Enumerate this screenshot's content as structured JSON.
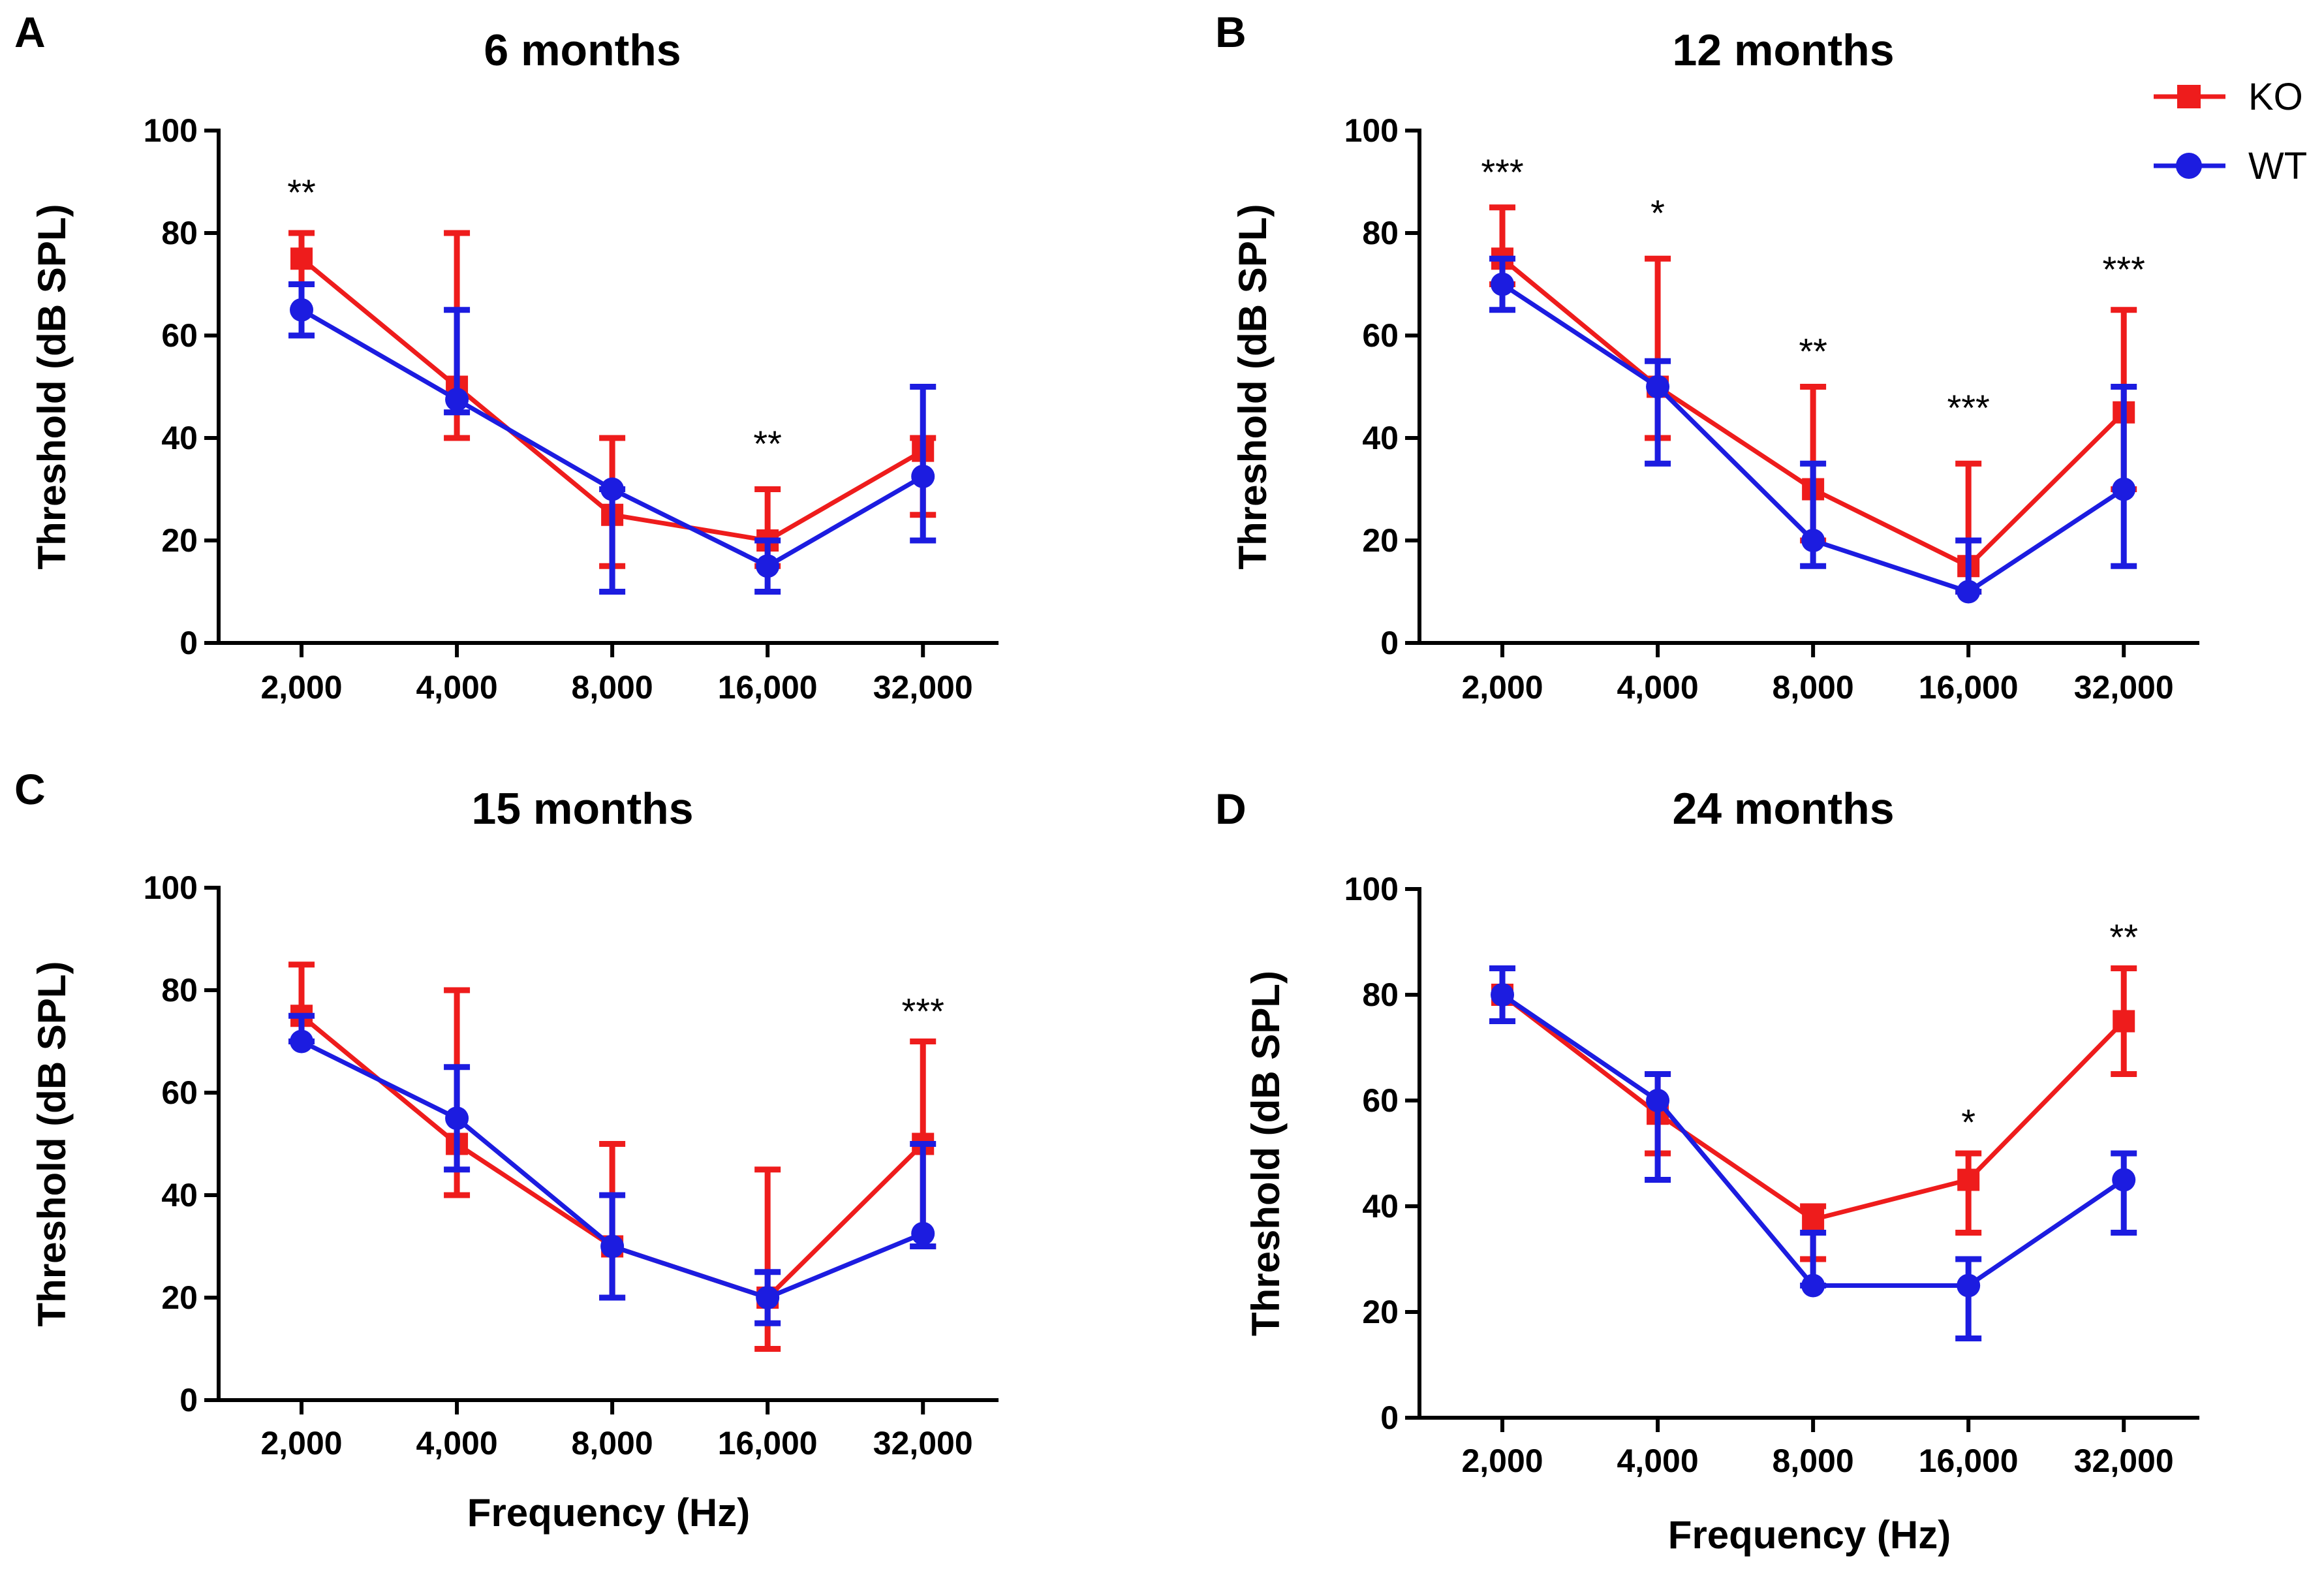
{
  "legend": {
    "entries": [
      {
        "name": "KO",
        "color": "#ee1c1c",
        "marker": "square"
      },
      {
        "name": "WT",
        "color": "#1c1ce0",
        "marker": "circle"
      }
    ]
  },
  "x_axis_label": "Frequency (Hz)",
  "chart_data": [
    {
      "panel": "A",
      "title": "6 months",
      "type": "line",
      "categories": [
        "2,000",
        "4,000",
        "8,000",
        "16,000",
        "32,000"
      ],
      "ylabel": "Threshold (dB SPL)",
      "xlabel": "",
      "ylim": [
        0,
        100
      ],
      "yticks": [
        "0",
        "20",
        "40",
        "60",
        "80",
        "100"
      ],
      "series": [
        {
          "name": "KO",
          "values": [
            75,
            50,
            25,
            20,
            37.5
          ],
          "err_low": [
            70,
            40,
            15,
            15,
            25
          ],
          "err_high": [
            80,
            80,
            40,
            30,
            40
          ]
        },
        {
          "name": "WT",
          "values": [
            65,
            47.5,
            30,
            15,
            32.5
          ],
          "err_low": [
            60,
            45,
            10,
            10,
            20
          ],
          "err_high": [
            70,
            65,
            30,
            20,
            50
          ]
        }
      ],
      "annotations": [
        {
          "index": 0,
          "text": "**",
          "y": 88
        },
        {
          "index": 3,
          "text": "**",
          "y": 39
        }
      ]
    },
    {
      "panel": "B",
      "title": "12 months",
      "type": "line",
      "categories": [
        "2,000",
        "4,000",
        "8,000",
        "16,000",
        "32,000"
      ],
      "ylabel": "Threshold (dB SPL)",
      "xlabel": "",
      "ylim": [
        0,
        100
      ],
      "yticks": [
        "0",
        "20",
        "40",
        "60",
        "80",
        "100"
      ],
      "series": [
        {
          "name": "KO",
          "values": [
            75,
            50,
            30,
            15,
            45
          ],
          "err_low": [
            70,
            40,
            20,
            10,
            30
          ],
          "err_high": [
            85,
            75,
            50,
            35,
            65
          ]
        },
        {
          "name": "WT",
          "values": [
            70,
            50,
            20,
            10,
            30
          ],
          "err_low": [
            65,
            35,
            15,
            10,
            15
          ],
          "err_high": [
            75,
            55,
            35,
            20,
            50
          ]
        }
      ],
      "annotations": [
        {
          "index": 0,
          "text": "***",
          "y": 92
        },
        {
          "index": 1,
          "text": "*",
          "y": 84
        },
        {
          "index": 2,
          "text": "**",
          "y": 57
        },
        {
          "index": 3,
          "text": "***",
          "y": 46
        },
        {
          "index": 4,
          "text": "***",
          "y": 73
        }
      ]
    },
    {
      "panel": "C",
      "title": "15 months",
      "type": "line",
      "categories": [
        "2,000",
        "4,000",
        "8,000",
        "16,000",
        "32,000"
      ],
      "ylabel": "Threshold (dB SPL)",
      "xlabel": "Frequency (Hz)",
      "ylim": [
        0,
        100
      ],
      "yticks": [
        "0",
        "20",
        "40",
        "60",
        "80",
        "100"
      ],
      "series": [
        {
          "name": "KO",
          "values": [
            75,
            50,
            30,
            20,
            50
          ],
          "err_low": [
            70,
            40,
            20,
            10,
            30
          ],
          "err_high": [
            85,
            80,
            50,
            45,
            70
          ]
        },
        {
          "name": "WT",
          "values": [
            70,
            55,
            30,
            20,
            32.5
          ],
          "err_low": [
            70,
            45,
            20,
            15,
            30
          ],
          "err_high": [
            75,
            65,
            40,
            25,
            50
          ]
        }
      ],
      "annotations": [
        {
          "index": 4,
          "text": "***",
          "y": 76
        }
      ]
    },
    {
      "panel": "D",
      "title": "24 months",
      "type": "line",
      "categories": [
        "2,000",
        "4,000",
        "8,000",
        "16,000",
        "32,000"
      ],
      "ylabel": "Threshold (dB SPL)",
      "xlabel": "Frequency (Hz)",
      "ylim": [
        0,
        100
      ],
      "yticks": [
        "0",
        "20",
        "40",
        "60",
        "80",
        "100"
      ],
      "series": [
        {
          "name": "KO",
          "values": [
            80,
            57.5,
            37.5,
            45,
            75
          ],
          "err_low": [
            75,
            50,
            30,
            35,
            65
          ],
          "err_high": [
            85,
            65,
            40,
            50,
            85
          ]
        },
        {
          "name": "WT",
          "values": [
            80,
            60,
            25,
            25,
            45
          ],
          "err_low": [
            75,
            45,
            25,
            15,
            35
          ],
          "err_high": [
            85,
            65,
            35,
            30,
            50
          ]
        }
      ],
      "annotations": [
        {
          "index": 3,
          "text": "*",
          "y": 56
        },
        {
          "index": 4,
          "text": "**",
          "y": 91
        }
      ]
    }
  ]
}
